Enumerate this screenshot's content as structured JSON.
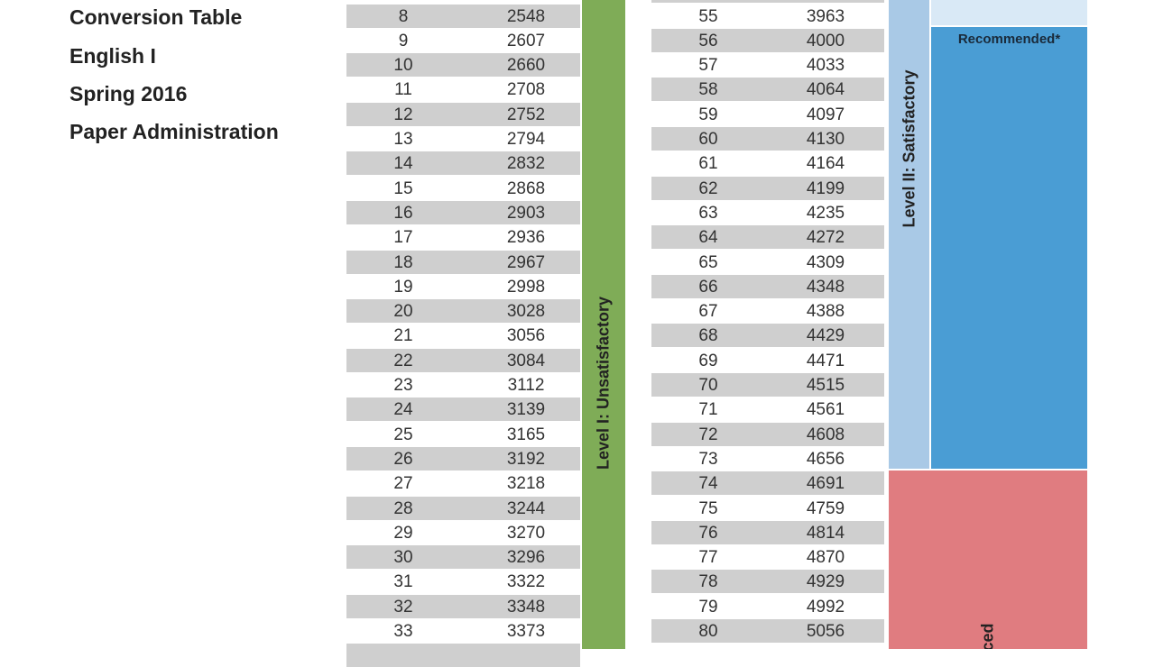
{
  "header": {
    "lines": [
      "Conversion Table",
      "English I",
      "Spring 2016",
      "Paper Administration"
    ]
  },
  "left_table": {
    "rows": [
      [
        "8",
        "2548"
      ],
      [
        "9",
        "2607"
      ],
      [
        "10",
        "2660"
      ],
      [
        "11",
        "2708"
      ],
      [
        "12",
        "2752"
      ],
      [
        "13",
        "2794"
      ],
      [
        "14",
        "2832"
      ],
      [
        "15",
        "2868"
      ],
      [
        "16",
        "2903"
      ],
      [
        "17",
        "2936"
      ],
      [
        "18",
        "2967"
      ],
      [
        "19",
        "2998"
      ],
      [
        "20",
        "3028"
      ],
      [
        "21",
        "3056"
      ],
      [
        "22",
        "3084"
      ],
      [
        "23",
        "3112"
      ],
      [
        "24",
        "3139"
      ],
      [
        "25",
        "3165"
      ],
      [
        "26",
        "3192"
      ],
      [
        "27",
        "3218"
      ],
      [
        "28",
        "3244"
      ],
      [
        "29",
        "3270"
      ],
      [
        "30",
        "3296"
      ],
      [
        "31",
        "3322"
      ],
      [
        "32",
        "3348"
      ],
      [
        "33",
        "3373"
      ]
    ]
  },
  "right_table": {
    "rows": [
      [
        "55",
        "3963"
      ],
      [
        "56",
        "4000"
      ],
      [
        "57",
        "4033"
      ],
      [
        "58",
        "4064"
      ],
      [
        "59",
        "4097"
      ],
      [
        "60",
        "4130"
      ],
      [
        "61",
        "4164"
      ],
      [
        "62",
        "4199"
      ],
      [
        "63",
        "4235"
      ],
      [
        "64",
        "4272"
      ],
      [
        "65",
        "4309"
      ],
      [
        "66",
        "4348"
      ],
      [
        "67",
        "4388"
      ],
      [
        "68",
        "4429"
      ],
      [
        "69",
        "4471"
      ],
      [
        "70",
        "4515"
      ],
      [
        "71",
        "4561"
      ],
      [
        "72",
        "4608"
      ],
      [
        "73",
        "4656"
      ],
      [
        "74",
        "4691"
      ],
      [
        "75",
        "4759"
      ],
      [
        "76",
        "4814"
      ],
      [
        "77",
        "4870"
      ],
      [
        "78",
        "4929"
      ],
      [
        "79",
        "4992"
      ],
      [
        "80",
        "5056"
      ]
    ]
  },
  "levels": {
    "level1": "Level I: Unsatisfactory",
    "level2": "Level II: Satisfactory",
    "recommended": "Recommended*",
    "level3_partial": "ced"
  },
  "colors": {
    "level1": "#7fac57",
    "level2": "#a9c9e6",
    "recommended": "#4a9dd4",
    "recommended_top": "#d9e9f6",
    "level3": "#e07c80",
    "row_shade": "#cfcfcf"
  }
}
